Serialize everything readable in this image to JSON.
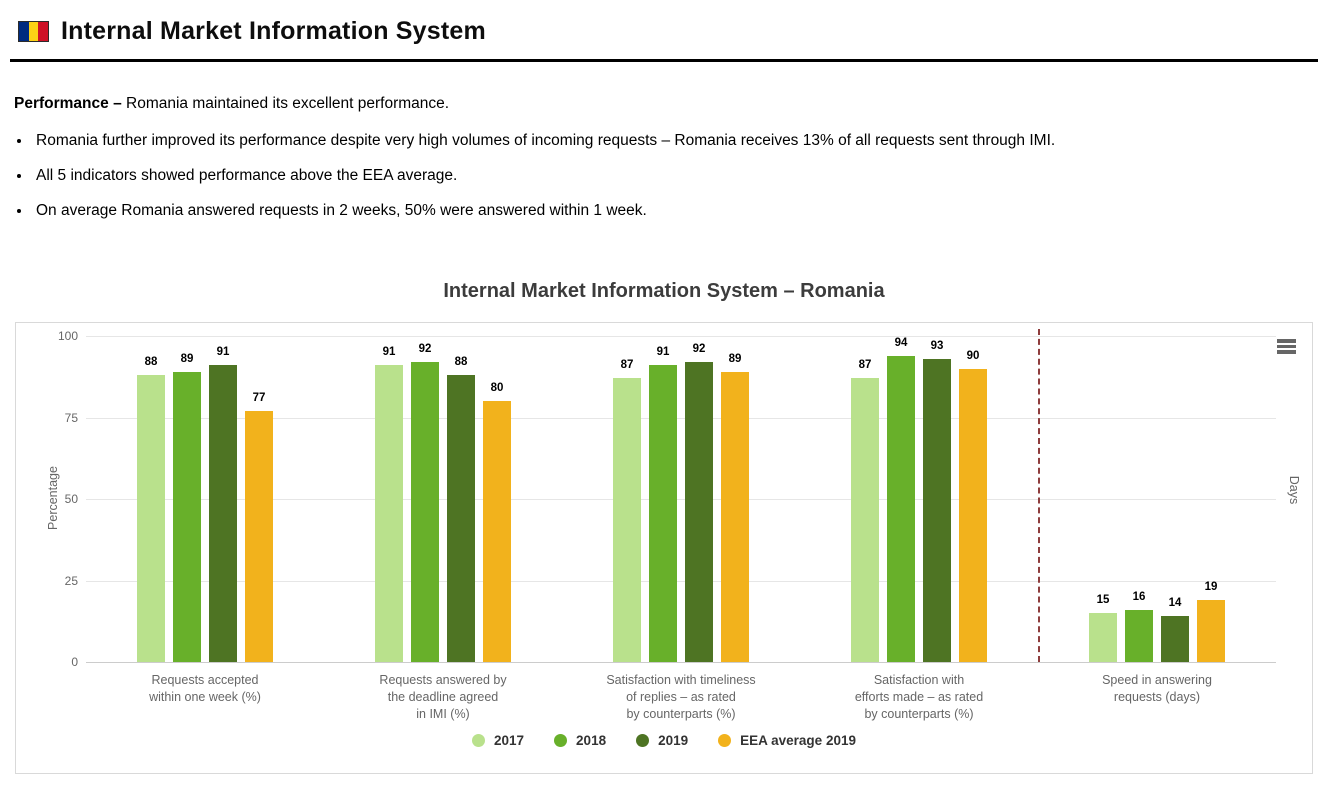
{
  "header": {
    "title": "Internal Market Information System",
    "flag_country": "Romania"
  },
  "summary": {
    "lead_bold": "Performance –",
    "lead_rest": " Romania maintained its excellent performance.",
    "bullets": [
      "Romania further improved its performance despite very high volumes of incoming requests – Romania receives 13% of all requests sent through IMI.",
      "All 5 indicators showed performance above the EEA average.",
      "On average Romania answered requests in 2 weeks, 50% were answered within 1 week."
    ]
  },
  "chart_data": {
    "type": "bar",
    "title": "Internal Market Information System – Romania",
    "categories": [
      [
        "Requests accepted",
        "within one week (%)"
      ],
      [
        "Requests answered by",
        "the deadline agreed",
        "in IMI (%)"
      ],
      [
        "Satisfaction with timeliness",
        "of replies – as rated",
        "by counterparts (%)"
      ],
      [
        "Satisfaction with",
        "efforts made – as rated",
        "by counterparts (%)"
      ],
      [
        "Speed in answering",
        "requests (days)"
      ]
    ],
    "series": [
      {
        "name": "2017",
        "color": "#b9e18c",
        "values": [
          88,
          91,
          87,
          87,
          15
        ]
      },
      {
        "name": "2018",
        "color": "#68b02a",
        "values": [
          89,
          92,
          91,
          94,
          16
        ]
      },
      {
        "name": "2019",
        "color": "#4e7423",
        "values": [
          91,
          88,
          92,
          93,
          14
        ]
      },
      {
        "name": "EEA average 2019",
        "color": "#f2b21c",
        "values": [
          77,
          80,
          89,
          90,
          19
        ]
      }
    ],
    "ylabel_left": "Percentage",
    "ylabel_right": "Days",
    "yticks": [
      0,
      25,
      50,
      75,
      100
    ],
    "ylim": [
      0,
      100
    ],
    "grid": true,
    "legend_position": "bottom",
    "separator_band_index": 4,
    "separator_color": "#8e3c3c"
  }
}
